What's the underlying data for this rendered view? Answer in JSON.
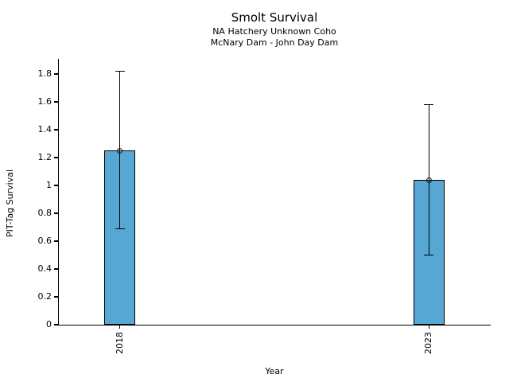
{
  "chart_data": {
    "type": "bar",
    "title": "Smolt Survival",
    "subtitle_line1": "NA Hatchery Unknown Coho",
    "subtitle_line2": "McNary Dam - John Day Dam",
    "xlabel": "Year",
    "ylabel": "PIT-Tag Survival",
    "categories": [
      "2018",
      "2023"
    ],
    "x": [
      2018,
      2023
    ],
    "values": [
      1.25,
      1.04
    ],
    "error_low": [
      0.69,
      0.5
    ],
    "error_high": [
      1.82,
      1.58
    ],
    "marker": "open-circle",
    "ytick_values": [
      0,
      0.2,
      0.4,
      0.6,
      0.8,
      1,
      1.2,
      1.4,
      1.6,
      1.8
    ],
    "ytick_labels": [
      "0",
      "0.2",
      "0.4",
      "0.6",
      "0.8",
      "1",
      "1.2",
      "1.4",
      "1.6",
      "1.8"
    ],
    "ylim": [
      0,
      1.91
    ],
    "xlim": [
      2017,
      2024
    ],
    "bar_width_units": 0.5,
    "x_tick_rotation": 90,
    "grid": false,
    "legend": null,
    "bar_color": "#57a7d4",
    "bar_edge_color": "#000000",
    "error_color": "#000000",
    "text_color": "#000000",
    "background_color": "#ffffff"
  }
}
